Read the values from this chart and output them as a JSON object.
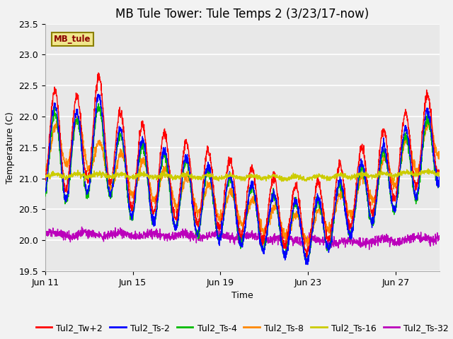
{
  "title": "MB Tule Tower: Tule Temps 2 (3/23/17-now)",
  "xlabel": "Time",
  "ylabel": "Temperature (C)",
  "ylim": [
    19.5,
    23.5
  ],
  "x_tick_labels": [
    "Jun 11",
    "Jun 15",
    "Jun 19",
    "Jun 23",
    "Jun 27"
  ],
  "x_tick_positions": [
    0,
    4,
    8,
    12,
    16
  ],
  "legend_label_box": "MB_tule",
  "legend_box_color": "#f0e68c",
  "legend_box_border": "#8b8000",
  "legend_box_text_color": "#8b0000",
  "series_labels": [
    "Tul2_Tw+2",
    "Tul2_Ts-2",
    "Tul2_Ts-4",
    "Tul2_Ts-8",
    "Tul2_Ts-16",
    "Tul2_Ts-32"
  ],
  "series_colors": [
    "#ff0000",
    "#0000ff",
    "#00bb00",
    "#ff8800",
    "#cccc00",
    "#bb00bb"
  ],
  "plot_bg_color": "#e8e8e8",
  "grid_color": "#ffffff",
  "fig_bg_color": "#f2f2f2",
  "title_fontsize": 12,
  "axis_fontsize": 9,
  "legend_fontsize": 9,
  "yticks": [
    19.5,
    20.0,
    20.5,
    21.0,
    21.5,
    22.0,
    22.5,
    23.0,
    23.5
  ]
}
